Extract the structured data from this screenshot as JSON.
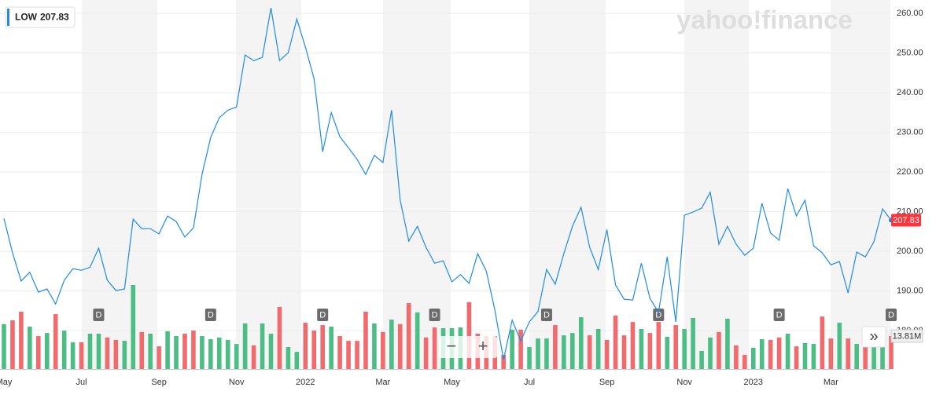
{
  "chart_data": {
    "type": "line",
    "symbol": "LOW",
    "brand": "yahoo!finance",
    "x": [
      "May",
      null,
      null,
      null,
      null,
      null,
      null,
      null,
      null,
      "Jul",
      null,
      null,
      null,
      null,
      null,
      null,
      null,
      null,
      "Sep",
      null,
      null,
      null,
      null,
      null,
      null,
      null,
      null,
      "Nov",
      null,
      null,
      null,
      null,
      null,
      null,
      null,
      "2022",
      null,
      null,
      null,
      null,
      null,
      null,
      null,
      null,
      "Mar",
      null,
      null,
      null,
      null,
      null,
      null,
      null,
      "May",
      null,
      null,
      null,
      null,
      null,
      null,
      null,
      null,
      "Jul",
      null,
      null,
      null,
      null,
      null,
      null,
      null,
      null,
      "Sep",
      null,
      null,
      null,
      null,
      null,
      null,
      null,
      null,
      "Nov",
      null,
      null,
      null,
      null,
      null,
      null,
      null,
      "2023",
      null,
      null,
      null,
      null,
      null,
      null,
      null,
      null,
      "Mar",
      null,
      null,
      null,
      null,
      null,
      null,
      null
    ],
    "series": [
      {
        "name": "LOW",
        "color": "#1f8be6",
        "values": [
          208.3,
          199.6,
          192.5,
          194.7,
          189.7,
          190.5,
          186.7,
          192.7,
          195.6,
          195.2,
          196.0,
          200.8,
          192.7,
          190.1,
          190.5,
          208.1,
          205.7,
          205.7,
          204.4,
          208.9,
          207.5,
          203.6,
          205.9,
          219.4,
          228.7,
          233.7,
          235.6,
          236.4,
          249.5,
          248.1,
          248.9,
          261.4,
          248.1,
          250.1,
          258.6,
          251.5,
          243.6,
          225.1,
          235.0,
          228.9,
          226.1,
          223.2,
          219.4,
          224.2,
          222.4,
          235.6,
          212.9,
          202.6,
          206.3,
          201.0,
          197.0,
          197.6,
          192.3,
          194.1,
          191.9,
          199.4,
          195.0,
          185.1,
          172.7,
          182.6,
          177.4,
          182.2,
          184.8,
          195.4,
          191.7,
          199.4,
          206.3,
          211.1,
          201.0,
          195.4,
          205.5,
          191.5,
          187.9,
          187.7,
          197.0,
          188.1,
          184.6,
          198.6,
          182.2,
          209.1,
          209.9,
          210.9,
          214.9,
          201.8,
          206.3,
          201.8,
          199.0,
          200.8,
          212.1,
          204.6,
          202.8,
          215.8,
          208.9,
          212.9,
          201.4,
          199.6,
          196.6,
          197.4,
          189.5,
          199.8,
          198.6,
          202.4,
          210.7,
          207.83
        ]
      }
    ],
    "ylim": [
      170.3,
      263.4
    ],
    "yticks": [
      {
        "value": 180,
        "label": "180.00"
      },
      {
        "value": 190,
        "label": "190.00"
      },
      {
        "value": 200,
        "label": "200.00"
      },
      {
        "value": 210,
        "label": "210.00"
      },
      {
        "value": 220,
        "label": "220.00"
      },
      {
        "value": 230,
        "label": "230.00"
      },
      {
        "value": 240,
        "label": "240.00"
      },
      {
        "value": 250,
        "label": "250.00"
      },
      {
        "value": 260,
        "label": "260.00"
      }
    ],
    "grid": true,
    "price_tag_color": "#ff333a",
    "volume": {
      "values": [
        18.8,
        20.4,
        24.0,
        17.8,
        13.8,
        15.1,
        23.0,
        16.1,
        11.2,
        11.2,
        14.8,
        14.8,
        13.2,
        12.2,
        11.8,
        35.2,
        15.5,
        14.8,
        9.5,
        15.8,
        13.8,
        14.8,
        16.1,
        13.8,
        12.5,
        13.2,
        12.2,
        10.5,
        19.1,
        9.9,
        19.1,
        14.8,
        26.0,
        9.2,
        7.2,
        19.4,
        16.1,
        18.4,
        17.8,
        13.8,
        11.8,
        11.8,
        24.0,
        19.1,
        15.5,
        20.7,
        18.8,
        27.6,
        23.7,
        13.2,
        17.4,
        17.1,
        17.1,
        17.4,
        28.0,
        14.8,
        13.8,
        13.8,
        5.9,
        16.5,
        16.5,
        9.2,
        12.8,
        12.8,
        18.4,
        14.1,
        15.1,
        21.7,
        14.1,
        16.8,
        12.2,
        22.4,
        14.1,
        19.7,
        16.8,
        15.1,
        19.7,
        13.5,
        18.4,
        16.8,
        21.4,
        7.6,
        13.2,
        15.5,
        21.1,
        9.9,
        5.9,
        8.9,
        12.5,
        12.2,
        13.2,
        14.8,
        9.5,
        10.9,
        10.5,
        22.0,
        12.8,
        19.4,
        12.8,
        10.5,
        9.9,
        9.9,
        9.9,
        13.81
      ],
      "colors": [
        "#4dbd86",
        "#f06a6e",
        "#f06a6e",
        "#4dbd86",
        "#f06a6e",
        "#4dbd86",
        "#f06a6e",
        "#4dbd86",
        "#4dbd86",
        "#f06a6e",
        "#4dbd86",
        "#4dbd86",
        "#f06a6e",
        "#f06a6e",
        "#4dbd86",
        "#4dbd86",
        "#f06a6e",
        "#4dbd86",
        "#f06a6e",
        "#4dbd86",
        "#4dbd86",
        "#f06a6e",
        "#f06a6e",
        "#4dbd86",
        "#4dbd86",
        "#4dbd86",
        "#4dbd86",
        "#4dbd86",
        "#4dbd86",
        "#f06a6e",
        "#4dbd86",
        "#4dbd86",
        "#f06a6e",
        "#4dbd86",
        "#4dbd86",
        "#f06a6e",
        "#f06a6e",
        "#f06a6e",
        "#4dbd86",
        "#f06a6e",
        "#f06a6e",
        "#f06a6e",
        "#f06a6e",
        "#4dbd86",
        "#f06a6e",
        "#4dbd86",
        "#f06a6e",
        "#f06a6e",
        "#4dbd86",
        "#f06a6e",
        "#f06a6e",
        "#4dbd86",
        "#4dbd86",
        "#4dbd86",
        "#f06a6e",
        "#f06a6e",
        "#f06a6e",
        "#f06a6e",
        "#f06a6e",
        "#4dbd86",
        "#f06a6e",
        "#4dbd86",
        "#4dbd86",
        "#4dbd86",
        "#f06a6e",
        "#4dbd86",
        "#4dbd86",
        "#4dbd86",
        "#f06a6e",
        "#4dbd86",
        "#f06a6e",
        "#f06a6e",
        "#f06a6e",
        "#f06a6e",
        "#4dbd86",
        "#f06a6e",
        "#f06a6e",
        "#4dbd86",
        "#f06a6e",
        "#4dbd86",
        "#4dbd86",
        "#4dbd86",
        "#4dbd86",
        "#f06a6e",
        "#4dbd86",
        "#f06a6e",
        "#f06a6e",
        "#4dbd86",
        "#4dbd86",
        "#f06a6e",
        "#f06a6e",
        "#4dbd86",
        "#f06a6e",
        "#4dbd86",
        "#4dbd86",
        "#f06a6e",
        "#f06a6e",
        "#4dbd86",
        "#f06a6e",
        "#4dbd86",
        "#f06a6e",
        "#4dbd86",
        "#4dbd86",
        "#f06a6e"
      ],
      "ylim": [
        0,
        154.6
      ],
      "yticks": [
        {
          "value": 13.81,
          "label": "13.81M"
        }
      ]
    },
    "dividends": {
      "label": "D",
      "at": [
        11,
        24,
        37,
        50,
        63,
        76,
        90,
        103
      ]
    }
  }
}
